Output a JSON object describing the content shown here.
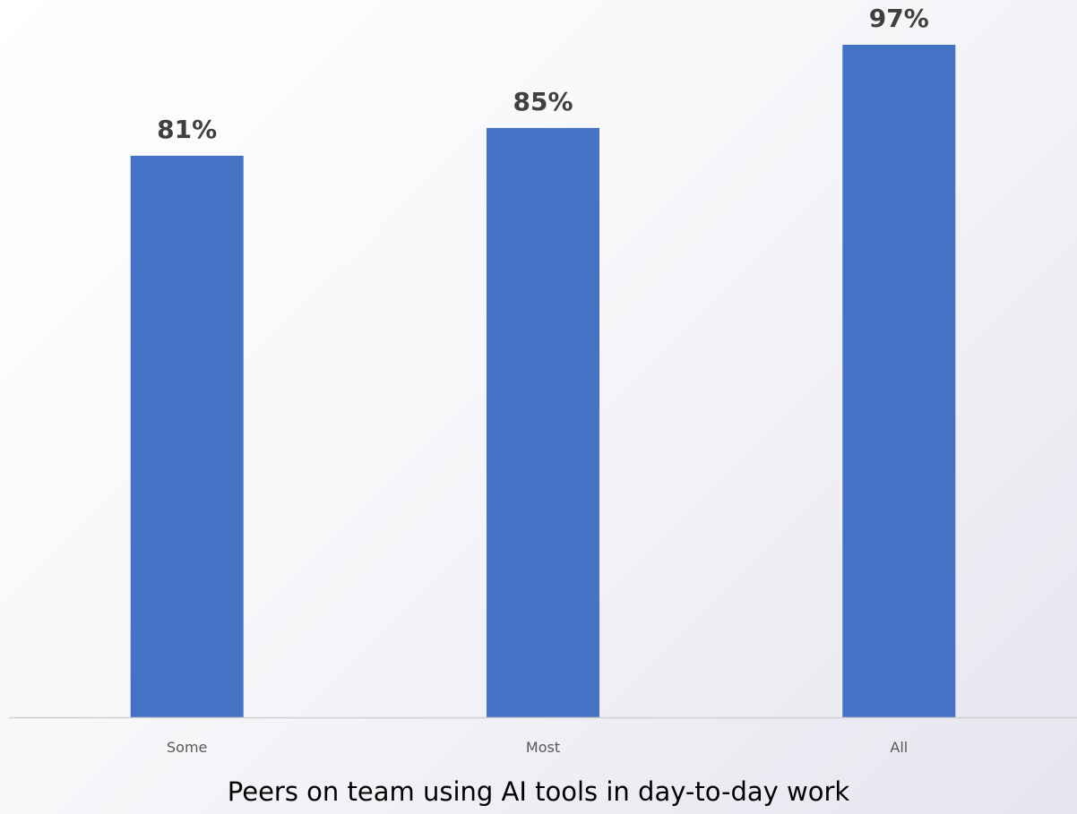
{
  "chart_data": {
    "type": "bar",
    "categories": [
      "Some",
      "Most",
      "All"
    ],
    "values": [
      81,
      85,
      97
    ],
    "data_labels": [
      "81%",
      "85%",
      "97%"
    ],
    "xlabel": "Peers on team using AI tools in day-to-day work",
    "ylabel": "",
    "ylim": [
      0,
      100
    ],
    "grid": false,
    "legend": "none",
    "colors": {
      "bar": "#4472C4",
      "label": "#404040",
      "tick": "#595959",
      "axis": "#d0d0d0"
    }
  }
}
